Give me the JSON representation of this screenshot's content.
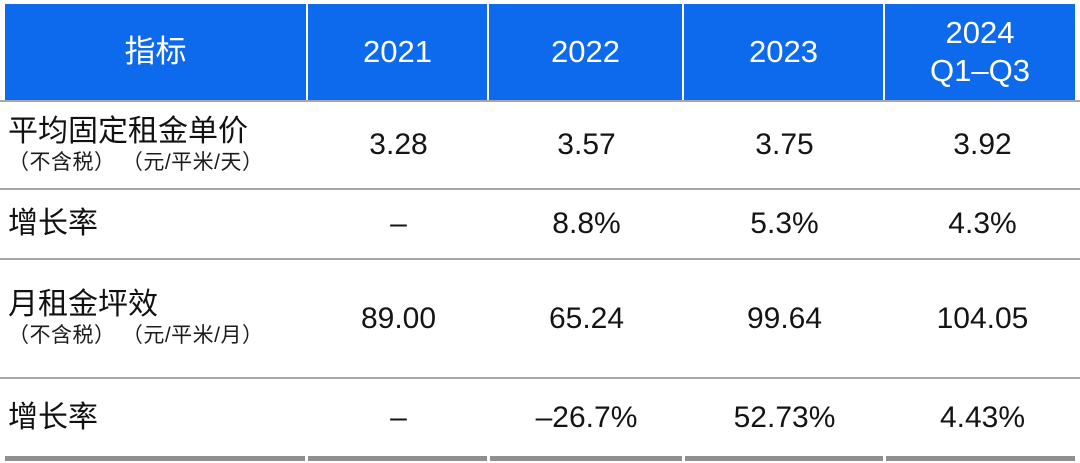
{
  "table": {
    "header": {
      "indicator_label": "指标",
      "columns": [
        "2021",
        "2022",
        "2023",
        "2024\nQ1–Q3"
      ]
    },
    "rows": [
      {
        "label": "平均固定租金单价",
        "sublabel": "（不含税） （元/平米/天）",
        "values": [
          "3.28",
          "3.57",
          "3.75",
          "3.92"
        ]
      },
      {
        "label": "增长率",
        "sublabel": "",
        "values": [
          "–",
          "8.8%",
          "5.3%",
          "4.3%"
        ]
      },
      {
        "label": "月租金坪效",
        "sublabel": "（不含税） （元/平米/月）",
        "values": [
          "89.00",
          "65.24",
          "99.64",
          "104.05"
        ]
      },
      {
        "label": "增长率",
        "sublabel": "",
        "values": [
          "–",
          "–26.7%",
          "52.73%",
          "4.43%"
        ]
      }
    ]
  },
  "colors": {
    "header_background": "#0e6aec",
    "header_text": "#ffffff",
    "row_separator": "#a6a6a6",
    "bottom_border": "#8f8f8f",
    "body_text": "#141414",
    "page_background": "#ffffff"
  },
  "chart_data": {
    "type": "table",
    "columns": [
      "指标",
      "2021",
      "2022",
      "2023",
      "2024 Q1–Q3"
    ],
    "rows": [
      {
        "indicator": "平均固定租金单价（不含税）（元/平米/天）",
        "2021": 3.28,
        "2022": 3.57,
        "2023": 3.75,
        "2024_Q1_Q3": 3.92
      },
      {
        "indicator": "增长率",
        "2021": null,
        "2022": "8.8%",
        "2023": "5.3%",
        "2024_Q1_Q3": "4.3%"
      },
      {
        "indicator": "月租金坪效（不含税）（元/平米/月）",
        "2021": 89.0,
        "2022": 65.24,
        "2023": 99.64,
        "2024_Q1_Q3": 104.05
      },
      {
        "indicator": "增长率",
        "2021": null,
        "2022": "-26.7%",
        "2023": "52.73%",
        "2024_Q1_Q3": "4.43%"
      }
    ]
  }
}
